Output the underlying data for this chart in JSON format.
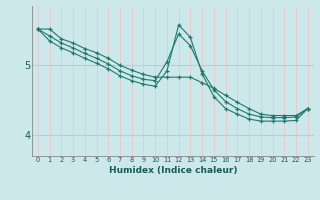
{
  "xlabel": "Humidex (Indice chaleur)",
  "bg_color": "#cce8ea",
  "vgrid_color": "#e8c8c8",
  "hgrid_color": "#aad4d6",
  "line_color": "#1e7a70",
  "x_values": [
    0,
    1,
    2,
    3,
    4,
    5,
    6,
    7,
    8,
    9,
    10,
    11,
    12,
    13,
    14,
    15,
    16,
    17,
    18,
    19,
    20,
    21,
    22,
    23
  ],
  "line1_y": [
    5.52,
    5.52,
    5.38,
    5.32,
    5.24,
    5.18,
    5.1,
    5.0,
    4.93,
    4.87,
    4.83,
    4.83,
    4.83,
    4.83,
    4.75,
    4.67,
    4.57,
    4.47,
    4.38,
    4.3,
    4.28,
    4.28,
    4.28,
    4.38
  ],
  "line2_y": [
    5.52,
    5.42,
    5.32,
    5.25,
    5.17,
    5.1,
    5.02,
    4.92,
    4.85,
    4.8,
    4.78,
    5.05,
    5.45,
    5.28,
    4.92,
    4.65,
    4.48,
    4.38,
    4.3,
    4.26,
    4.25,
    4.25,
    4.26,
    4.38
  ],
  "line3_y": [
    5.52,
    5.35,
    5.25,
    5.18,
    5.1,
    5.03,
    4.95,
    4.85,
    4.78,
    4.73,
    4.7,
    4.92,
    5.58,
    5.4,
    4.88,
    4.55,
    4.38,
    4.3,
    4.23,
    4.2,
    4.2,
    4.2,
    4.21,
    4.38
  ],
  "yticks": [
    4,
    5
  ],
  "ylim": [
    3.7,
    5.85
  ],
  "xlim": [
    -0.5,
    23.5
  ]
}
